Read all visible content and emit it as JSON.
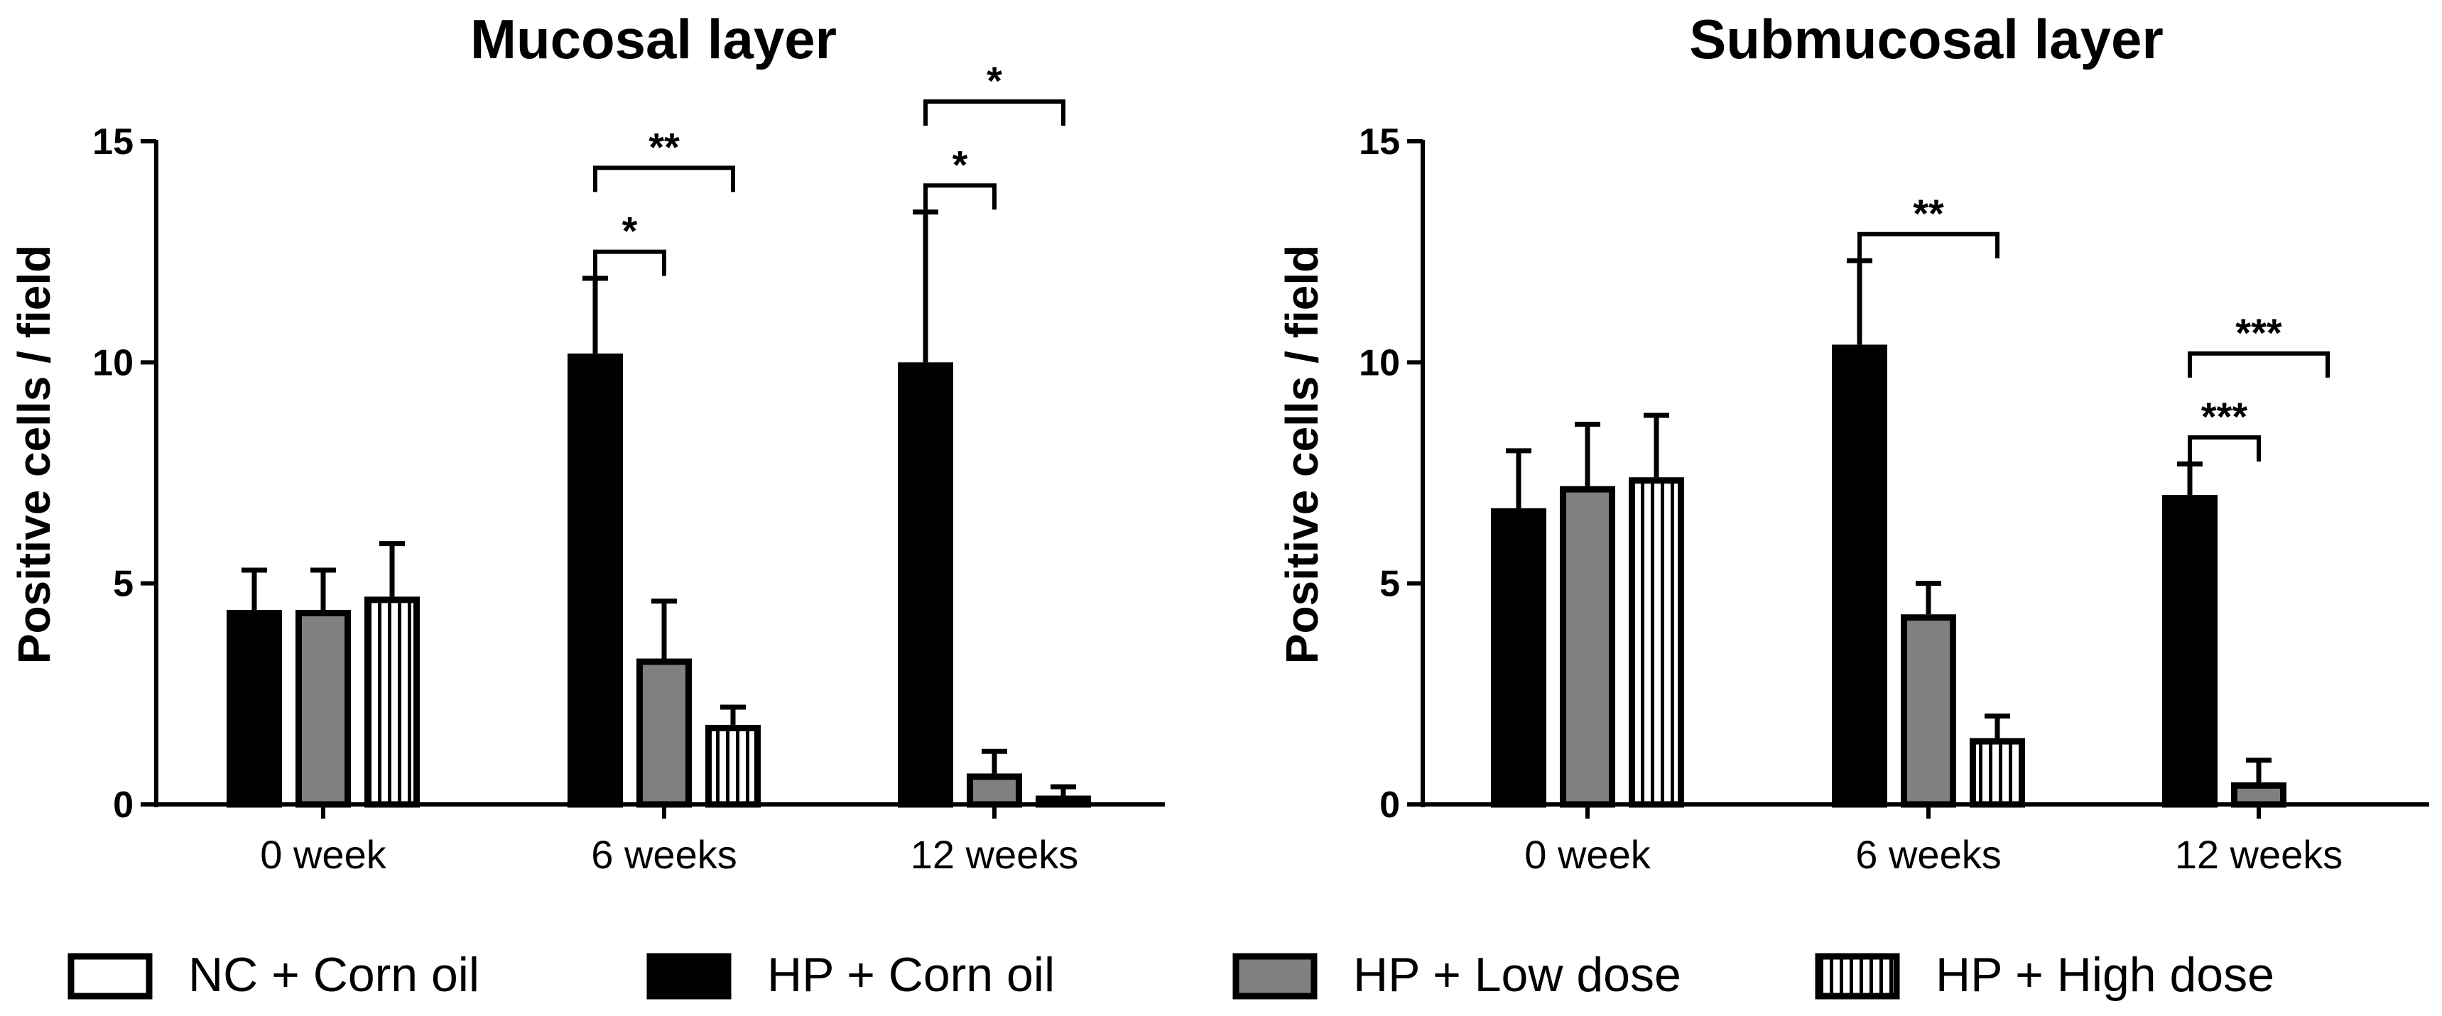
{
  "patterns": {
    "NC + Corn oil": "white",
    "HP + Corn oil": "black",
    "HP + Low dose": "gray",
    "HP + High dose": "vstripe"
  },
  "colors": {
    "black": "#000000",
    "gray": "#808080",
    "white": "#ffffff"
  },
  "legend": [
    "NC + Corn oil",
    "HP + Corn oil",
    "HP + Low dose",
    "HP + High dose"
  ],
  "chart_data": [
    {
      "type": "bar",
      "title": "Mucosal layer",
      "xlabel": "",
      "ylabel": "Positive cells / field",
      "ylim": [
        0,
        15
      ],
      "yticks": [
        0,
        5,
        10,
        15
      ],
      "categories": [
        "0 week",
        "6 weeks",
        "12 weeks"
      ],
      "series": [
        {
          "name": "HP + Corn oil",
          "values": [
            4.4,
            10.2,
            10.0
          ],
          "errors": [
            0.9,
            1.7,
            3.4
          ]
        },
        {
          "name": "HP + Low dose",
          "values": [
            4.4,
            3.3,
            0.7
          ],
          "errors": [
            0.9,
            1.3,
            0.5
          ]
        },
        {
          "name": "HP + High dose",
          "values": [
            4.7,
            1.8,
            0.2
          ],
          "errors": [
            1.2,
            0.4,
            0.2
          ]
        }
      ],
      "annotations": [
        {
          "category": "6 weeks",
          "from": "HP + Corn oil",
          "to": "HP + Low dose",
          "label": "*",
          "level": 1
        },
        {
          "category": "6 weeks",
          "from": "HP + Corn oil",
          "to": "HP + High dose",
          "label": "**",
          "level": 2
        },
        {
          "category": "12 weeks",
          "from": "HP + Corn oil",
          "to": "HP + Low dose",
          "label": "*",
          "level": 1
        },
        {
          "category": "12 weeks",
          "from": "HP + Corn oil",
          "to": "HP + High dose",
          "label": "*",
          "level": 2
        }
      ]
    },
    {
      "type": "bar",
      "title": "Submucosal layer",
      "xlabel": "",
      "ylabel": "Positive cells / field",
      "ylim": [
        0,
        15
      ],
      "yticks": [
        0,
        5,
        10,
        15
      ],
      "categories": [
        "0 week",
        "6 weeks",
        "12 weeks"
      ],
      "series": [
        {
          "name": "HP + Corn oil",
          "values": [
            6.7,
            10.4,
            7.0
          ],
          "errors": [
            1.3,
            1.9,
            0.7
          ]
        },
        {
          "name": "HP + Low dose",
          "values": [
            7.2,
            4.3,
            0.5
          ],
          "errors": [
            1.4,
            0.7,
            0.5
          ]
        },
        {
          "name": "HP + High dose",
          "values": [
            7.4,
            1.5,
            0.0
          ],
          "errors": [
            1.4,
            0.5,
            0.0
          ]
        }
      ],
      "annotations": [
        {
          "category": "6 weeks",
          "from": "HP + Corn oil",
          "to": "HP + High dose",
          "label": "**",
          "level": 1
        },
        {
          "category": "12 weeks",
          "from": "HP + Corn oil",
          "to": "HP + Low dose",
          "label": "***",
          "level": 1
        },
        {
          "category": "12 weeks",
          "from": "HP + Corn oil",
          "to": "HP + High dose",
          "label": "***",
          "level": 2
        }
      ]
    }
  ]
}
